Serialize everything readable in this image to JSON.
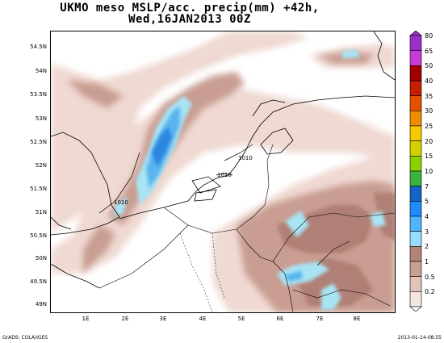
{
  "title": {
    "line1": "UKMO meso MSLP/acc. precip(mm) +42h,",
    "line2": "Wed,16JAN2013 00Z"
  },
  "axes": {
    "lat_labels": [
      "54.5N",
      "54N",
      "53.5N",
      "53N",
      "52.5N",
      "52N",
      "51.5N",
      "51N",
      "50.5N",
      "50N",
      "49.5N",
      "49N"
    ],
    "lon_labels": [
      "1E",
      "2E",
      "3E",
      "4E",
      "5E",
      "6E",
      "7E",
      "8E"
    ]
  },
  "isobar_labels": [
    "1010",
    "1010",
    "1010"
  ],
  "colorbar": {
    "levels": [
      "80",
      "65",
      "50",
      "40",
      "35",
      "30",
      "25",
      "20",
      "15",
      "10",
      "7",
      "5",
      "4",
      "3",
      "2",
      "1",
      "0.5",
      "0.2"
    ],
    "colors": [
      "#9b30c8",
      "#c83cd6",
      "#a00000",
      "#c81e00",
      "#e65000",
      "#f08c00",
      "#f5c800",
      "#d2d200",
      "#8cd200",
      "#3cb43c",
      "#1464c8",
      "#1e8cff",
      "#50b4ff",
      "#96dcff",
      "#b48278",
      "#c8a096",
      "#e1c3b9",
      "#f5e6e1"
    ]
  },
  "footer": {
    "left": "GrADS: COLA/IGES",
    "right": "2013-01-14-08:55"
  }
}
